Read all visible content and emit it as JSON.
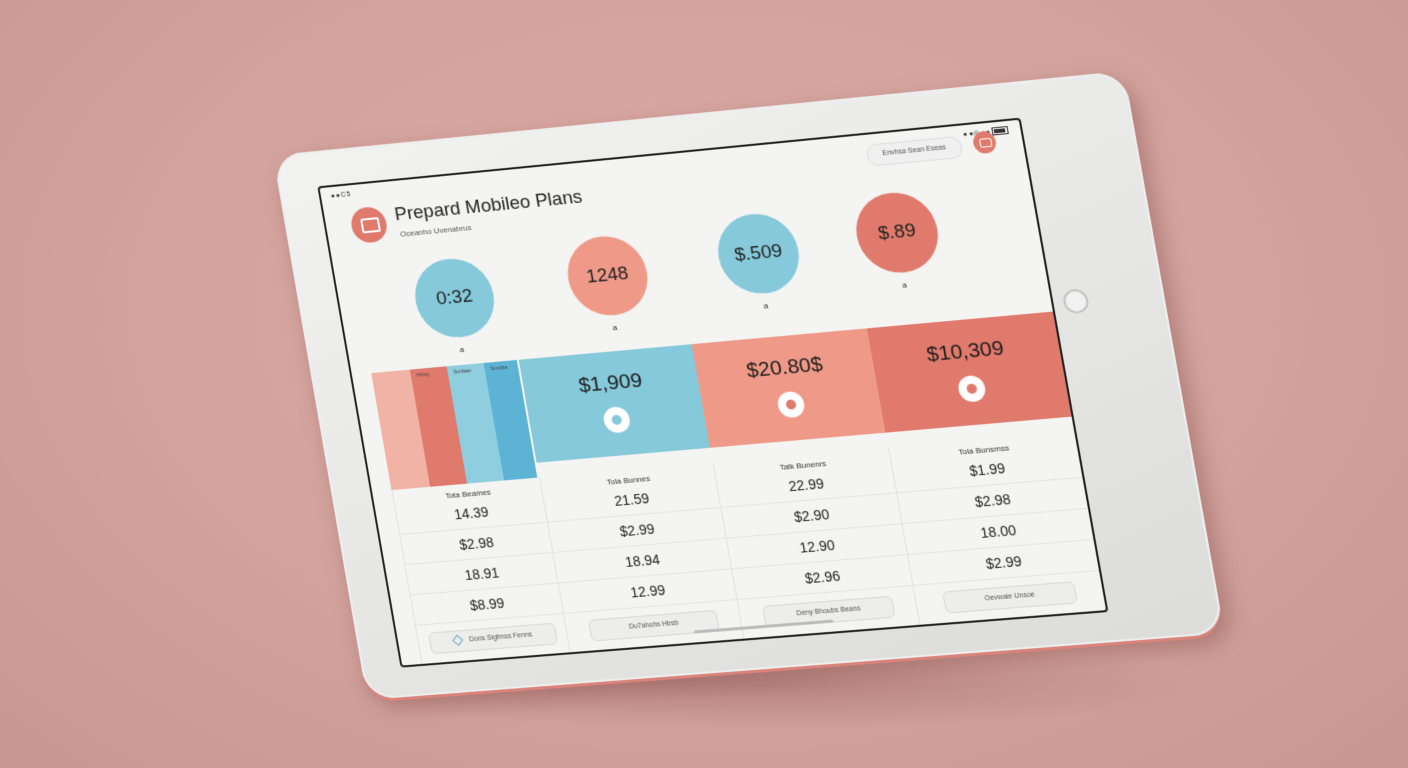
{
  "status": {
    "left": "●●C5",
    "right": "● ●◎ ●●"
  },
  "app": {
    "title": "Prepard Mobileo Plans",
    "subtitle": "Oceanho Uvenabrus"
  },
  "header": {
    "pill_label": "Envhsa Sean Eseas"
  },
  "circles": [
    {
      "value": "0:32",
      "color": "#86c9da",
      "caption": "a"
    },
    {
      "value": "1248",
      "color": "#ef9a88",
      "caption": "a"
    },
    {
      "value": "$.509",
      "color": "#86c9da",
      "caption": "a"
    },
    {
      "value": "$.89",
      "color": "#e07a6c",
      "caption": "a"
    }
  ],
  "stripes": [
    "Hrbsy",
    "Sunlase",
    "Sundsa"
  ],
  "plans": [
    {
      "price": "$1,909",
      "color": "#86c9da",
      "icon_color": "#86c9da"
    },
    {
      "price": "$20.80$",
      "color": "#ef9a88",
      "icon_color": "#e07a6c"
    },
    {
      "price": "$10,309",
      "color": "#e07a6c",
      "icon_color": "#e07a6c"
    }
  ],
  "columns": [
    {
      "header": "Tota Beames",
      "rows": [
        "14.39",
        "$2.98",
        "18.91",
        "$8.99"
      ],
      "button": "Dons Sigfmss Fenns"
    },
    {
      "header": "Tola Bunnes",
      "rows": [
        "21.59",
        "$2.99",
        "18.94",
        "12.99"
      ],
      "button": "Du7ahohs Hbsb"
    },
    {
      "header": "Tatk Bunenrs",
      "rows": [
        "22.99",
        "$2.90",
        "12.90",
        "$2.96"
      ],
      "button": "Deny Bhoubs Beans"
    },
    {
      "header": "Tola Bunsmss",
      "rows": [
        "$1.99",
        "$2.98",
        "18.00",
        "$2.99"
      ],
      "button": "Oevwaie Unsoe"
    }
  ]
}
